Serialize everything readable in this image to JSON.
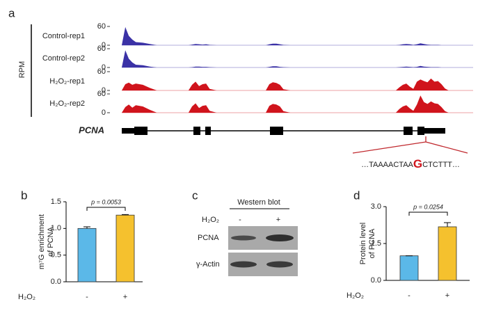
{
  "panel_labels": [
    "a",
    "b",
    "c",
    "d"
  ],
  "tracks": {
    "type": "area",
    "ylabel": "RPM",
    "xlim": [
      0,
      100
    ],
    "ylim": [
      0,
      60
    ],
    "yticks": [
      0,
      60
    ],
    "x": [
      0,
      1,
      2,
      3,
      4,
      6,
      8,
      10,
      19,
      20,
      21,
      22,
      23,
      24,
      25,
      27,
      41,
      42,
      43,
      44,
      45,
      46,
      48,
      78,
      79,
      80,
      81,
      82,
      83,
      84,
      85,
      86,
      87,
      88,
      89,
      90,
      91,
      92,
      93,
      100
    ],
    "series": [
      {
        "name": "Control-rep1",
        "color": "#3b32a6",
        "values": [
          0,
          58,
          30,
          18,
          10,
          8,
          4,
          0,
          0,
          2,
          4,
          3,
          2,
          3,
          1,
          0,
          0,
          3,
          5,
          5,
          3,
          1,
          0,
          0,
          1,
          3,
          4,
          3,
          1,
          3,
          6,
          4,
          2,
          1,
          1,
          1,
          0,
          0,
          0,
          0
        ]
      },
      {
        "name": "Control-rep2",
        "color": "#3b32a6",
        "values": [
          0,
          55,
          28,
          16,
          9,
          7,
          3,
          0,
          0,
          1,
          3,
          3,
          2,
          2,
          1,
          0,
          0,
          2,
          4,
          4,
          2,
          1,
          0,
          0,
          1,
          2,
          3,
          2,
          1,
          2,
          5,
          3,
          2,
          1,
          1,
          1,
          0,
          0,
          0,
          0
        ]
      },
      {
        "name": "H₂O₂-rep1",
        "color": "#d0141c",
        "values": [
          0,
          20,
          25,
          18,
          22,
          18,
          8,
          0,
          0,
          18,
          28,
          14,
          20,
          22,
          5,
          0,
          0,
          20,
          26,
          24,
          18,
          4,
          0,
          0,
          10,
          18,
          22,
          12,
          5,
          28,
          35,
          30,
          26,
          38,
          28,
          30,
          20,
          6,
          0,
          0
        ]
      },
      {
        "name": "H₂O₂-rep2",
        "color": "#d0141c",
        "values": [
          0,
          18,
          26,
          16,
          24,
          20,
          9,
          0,
          0,
          20,
          30,
          15,
          22,
          24,
          6,
          0,
          0,
          22,
          28,
          26,
          20,
          5,
          0,
          0,
          12,
          20,
          24,
          14,
          6,
          26,
          55,
          34,
          28,
          36,
          30,
          28,
          18,
          5,
          0,
          0
        ]
      }
    ]
  },
  "gene": {
    "name": "PCNA",
    "sequence": {
      "before": "…TAAAACTAA",
      "site": "G",
      "after": "CTCTTT…"
    }
  },
  "western_blot": {
    "title": "Western blot",
    "treatment": "H₂O₂",
    "lanes": [
      "-",
      "+"
    ],
    "rows": [
      "PCNA",
      "γ-Actin"
    ]
  },
  "chart_data": [
    {
      "type": "bar",
      "ylabel": [
        "m⁷G enrichment",
        "of PCNA"
      ],
      "xlabel": "H₂O₂",
      "categories": [
        "-",
        "+"
      ],
      "values": [
        1.0,
        1.25
      ],
      "errors": [
        0.03,
        0.01
      ],
      "colors": [
        "#5bb8e8",
        "#f5c12e"
      ],
      "ylim": [
        0,
        1.5
      ],
      "yticks": [
        {
          "value": 0,
          "label": "0.0"
        },
        0.5,
        {
          "value": 1,
          "label": "1.0"
        },
        1.5
      ],
      "annotation": "p = 0.0053"
    },
    {
      "type": "bar",
      "ylabel": [
        "Protein level",
        "of PCNA"
      ],
      "xlabel": "H₂O₂",
      "categories": [
        "-",
        "+"
      ],
      "values": [
        1.0,
        2.18
      ],
      "errors": [
        0,
        0.17
      ],
      "colors": [
        "#5bb8e8",
        "#f5c12e"
      ],
      "ylim": [
        0,
        3
      ],
      "yticks": [
        {
          "value": 0,
          "label": "0.0"
        },
        1.5,
        {
          "value": 3,
          "label": "3.0"
        }
      ],
      "annotation": "p = 0.0254"
    }
  ]
}
